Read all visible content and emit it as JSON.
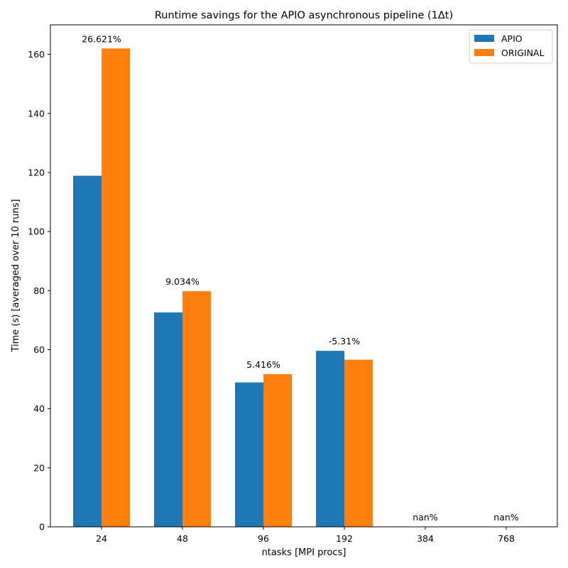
{
  "chart_data": {
    "type": "bar",
    "title": "Runtime savings for the APIO asynchronous pipeline (1Δt)",
    "xlabel": "ntasks [MPI procs]",
    "ylabel": "Time (s) [averaged over 10 runs]",
    "categories": [
      "24",
      "48",
      "96",
      "192",
      "384",
      "768"
    ],
    "ylim": [
      0,
      170
    ],
    "yticks": [
      0,
      20,
      40,
      60,
      80,
      100,
      120,
      140,
      160
    ],
    "legend_position": "top-right",
    "grid": false,
    "series": [
      {
        "name": "APIO",
        "color": "#1f77b4",
        "values": [
          118.9,
          72.6,
          48.9,
          59.6,
          0,
          0
        ]
      },
      {
        "name": "ORIGINAL",
        "color": "#ff7f0e",
        "values": [
          162.0,
          79.8,
          51.7,
          56.6,
          0,
          0
        ]
      }
    ],
    "annotations": [
      "26.621%",
      "9.034%",
      "5.416%",
      "-5.31%",
      "nan%",
      "nan%"
    ]
  }
}
